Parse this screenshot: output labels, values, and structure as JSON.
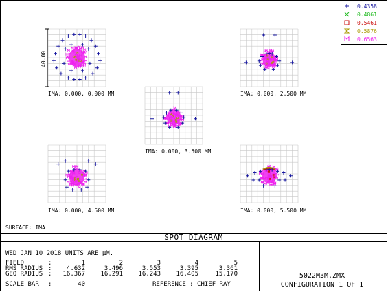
{
  "chart_data": {
    "type": "scatter",
    "title": "SPOT DIAGRAM",
    "surface_label": "SURFACE: IMA",
    "scale_bar_label": "40.00",
    "legend": [
      {
        "label": "0.4358",
        "color": "#1a1aa0",
        "marker": "plus"
      },
      {
        "label": "0.4861",
        "color": "#22bb22",
        "marker": "x"
      },
      {
        "label": "0.5461",
        "color": "#cc1111",
        "marker": "square"
      },
      {
        "label": "0.5876",
        "color": "#aa9900",
        "marker": "hourglass"
      },
      {
        "label": "0.6563",
        "color": "#ee22ee",
        "marker": "m"
      }
    ],
    "fields": [
      {
        "ima": "IMA: 0.000, 0.000 MM",
        "spread": 0.85,
        "core": 0.3,
        "ring_y": 0.0,
        "blue_points": [
          [
            -0.1,
            -0.8
          ],
          [
            0.1,
            -0.8
          ],
          [
            0.3,
            -0.75
          ],
          [
            -0.3,
            -0.75
          ],
          [
            -0.5,
            -0.6
          ],
          [
            0.5,
            -0.6
          ],
          [
            -0.65,
            -0.4
          ],
          [
            0.65,
            -0.4
          ],
          [
            -0.75,
            -0.15
          ],
          [
            0.75,
            -0.15
          ],
          [
            -0.8,
            0.1
          ],
          [
            0.8,
            0.1
          ],
          [
            -0.7,
            0.35
          ],
          [
            0.7,
            0.35
          ],
          [
            -0.55,
            0.55
          ],
          [
            0.55,
            0.55
          ],
          [
            -0.3,
            0.7
          ],
          [
            0.3,
            0.7
          ],
          [
            -0.1,
            0.75
          ],
          [
            0.1,
            0.75
          ],
          [
            -0.4,
            -0.3
          ],
          [
            0.4,
            -0.3
          ],
          [
            -0.45,
            0.2
          ],
          [
            0.45,
            0.2
          ],
          [
            -0.2,
            -0.45
          ],
          [
            0.2,
            -0.45
          ],
          [
            -0.2,
            0.45
          ],
          [
            0.2,
            0.45
          ]
        ]
      },
      {
        "ima": "IMA: 0.000, 2.500 MM",
        "spread": 0.6,
        "core": 0.24,
        "ring_y": 0.15,
        "blue_points": [
          [
            -0.2,
            -0.85
          ],
          [
            0.2,
            -0.85
          ],
          [
            -0.8,
            0.1
          ],
          [
            0.8,
            0.1
          ],
          [
            -0.35,
            0.05
          ],
          [
            0.35,
            0.05
          ],
          [
            -0.3,
            0.2
          ],
          [
            0.3,
            0.2
          ],
          [
            -0.25,
            -0.1
          ],
          [
            0.25,
            -0.1
          ],
          [
            -0.1,
            -0.2
          ],
          [
            0.1,
            -0.2
          ],
          [
            -0.15,
            0.35
          ],
          [
            0.15,
            0.35
          ],
          [
            0.0,
            -0.22
          ]
        ]
      },
      {
        "ima": "IMA: 0.000, 3.500 MM",
        "spread": 0.6,
        "core": 0.26,
        "ring_y": 0.15,
        "blue_points": [
          [
            -0.15,
            -0.85
          ],
          [
            0.15,
            -0.85
          ],
          [
            -0.75,
            0.05
          ],
          [
            0.75,
            0.05
          ],
          [
            -0.35,
            0.0
          ],
          [
            0.35,
            0.0
          ],
          [
            -0.3,
            0.2
          ],
          [
            0.3,
            0.2
          ],
          [
            -0.25,
            -0.15
          ],
          [
            0.25,
            -0.15
          ],
          [
            -0.1,
            -0.25
          ],
          [
            0.1,
            -0.25
          ],
          [
            -0.15,
            0.35
          ],
          [
            0.15,
            0.35
          ]
        ]
      },
      {
        "ima": "IMA: 0.000, 4.500 MM",
        "spread": 0.62,
        "core": 0.28,
        "ring_y": 0.25,
        "blue_points": [
          [
            -0.65,
            -0.45
          ],
          [
            -0.4,
            -0.55
          ],
          [
            0.4,
            -0.55
          ],
          [
            0.65,
            -0.45
          ],
          [
            -0.3,
            -0.2
          ],
          [
            -0.1,
            -0.25
          ],
          [
            0.1,
            -0.25
          ],
          [
            0.3,
            -0.2
          ],
          [
            -0.4,
            0.1
          ],
          [
            0.4,
            0.1
          ],
          [
            -0.35,
            0.35
          ],
          [
            0.35,
            0.35
          ],
          [
            -0.15,
            0.45
          ],
          [
            0.15,
            0.45
          ]
        ]
      },
      {
        "ima": "IMA: 0.000, 5.500 MM",
        "spread": 0.6,
        "core": 0.26,
        "ring_y": 0.15,
        "blue_points": [
          [
            -0.75,
            0.0
          ],
          [
            -0.5,
            -0.1
          ],
          [
            0.5,
            -0.1
          ],
          [
            0.75,
            0.0
          ],
          [
            -0.3,
            -0.15
          ],
          [
            -0.1,
            -0.2
          ],
          [
            0.1,
            -0.2
          ],
          [
            0.3,
            -0.15
          ],
          [
            -0.35,
            0.15
          ],
          [
            0.35,
            0.15
          ],
          [
            -0.2,
            0.35
          ],
          [
            0.2,
            0.35
          ],
          [
            0.0,
            -0.22
          ],
          [
            0.55,
            0.15
          ],
          [
            -0.55,
            0.15
          ]
        ]
      }
    ]
  },
  "table": {
    "date_line": "WED JAN 10 2018  UNITS ARE µM.",
    "rows": [
      {
        "label": "FIELD",
        "sep": ":",
        "values": [
          "1",
          "2",
          "3",
          "4",
          "5"
        ]
      },
      {
        "label": "RMS RADIUS",
        "sep": ":",
        "values": [
          "4.632",
          "3.496",
          "3.553",
          "3.395",
          "3.361"
        ]
      },
      {
        "label": "GEO RADIUS",
        "sep": ":",
        "values": [
          "16.367",
          "16.291",
          "16.243",
          "16.405",
          "15.170"
        ]
      }
    ],
    "scale_bar": {
      "label": "SCALE BAR",
      "sep": ":",
      "value": "40"
    },
    "reference": "REFERENCE  : CHIEF RAY"
  },
  "file_block": {
    "filename": "5022M3M.ZMX",
    "configuration": "CONFIGURATION 1 OF 1"
  }
}
